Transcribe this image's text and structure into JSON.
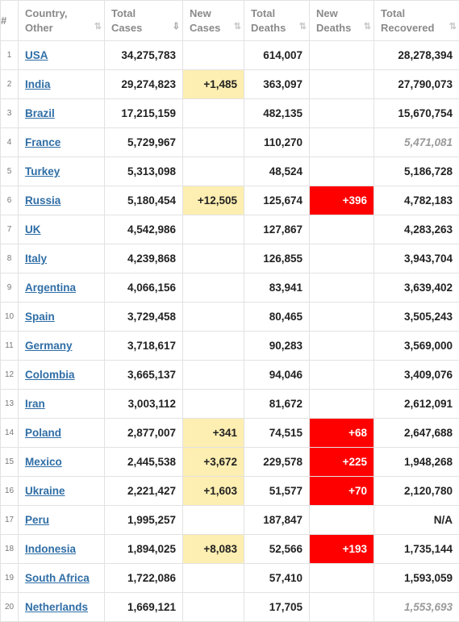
{
  "table": {
    "headers": [
      {
        "label": "#"
      },
      {
        "label": "Country, Other",
        "sort": "⇅"
      },
      {
        "label": "Total Cases",
        "sort": "⇩"
      },
      {
        "label": "New Cases",
        "sort": "⇅"
      },
      {
        "label": "Total Deaths",
        "sort": "⇅"
      },
      {
        "label": "New Deaths",
        "sort": "⇅"
      },
      {
        "label": "Total Recovered",
        "sort": "⇅"
      }
    ],
    "rows": [
      {
        "rank": "1",
        "country": "USA",
        "total_cases": "34,275,783",
        "new_cases": "",
        "total_deaths": "614,007",
        "new_deaths": "",
        "total_recovered": "28,278,394"
      },
      {
        "rank": "2",
        "country": "India",
        "total_cases": "29,274,823",
        "new_cases": "+1,485",
        "total_deaths": "363,097",
        "new_deaths": "",
        "total_recovered": "27,790,073"
      },
      {
        "rank": "3",
        "country": "Brazil",
        "total_cases": "17,215,159",
        "new_cases": "",
        "total_deaths": "482,135",
        "new_deaths": "",
        "total_recovered": "15,670,754"
      },
      {
        "rank": "4",
        "country": "France",
        "total_cases": "5,729,967",
        "new_cases": "",
        "total_deaths": "110,270",
        "new_deaths": "",
        "total_recovered": "5,471,081",
        "recovered_muted": true
      },
      {
        "rank": "5",
        "country": "Turkey",
        "total_cases": "5,313,098",
        "new_cases": "",
        "total_deaths": "48,524",
        "new_deaths": "",
        "total_recovered": "5,186,728"
      },
      {
        "rank": "6",
        "country": "Russia",
        "total_cases": "5,180,454",
        "new_cases": "+12,505",
        "total_deaths": "125,674",
        "new_deaths": "+396",
        "total_recovered": "4,782,183"
      },
      {
        "rank": "7",
        "country": "UK",
        "total_cases": "4,542,986",
        "new_cases": "",
        "total_deaths": "127,867",
        "new_deaths": "",
        "total_recovered": "4,283,263"
      },
      {
        "rank": "8",
        "country": "Italy",
        "total_cases": "4,239,868",
        "new_cases": "",
        "total_deaths": "126,855",
        "new_deaths": "",
        "total_recovered": "3,943,704"
      },
      {
        "rank": "9",
        "country": "Argentina",
        "total_cases": "4,066,156",
        "new_cases": "",
        "total_deaths": "83,941",
        "new_deaths": "",
        "total_recovered": "3,639,402"
      },
      {
        "rank": "10",
        "country": "Spain",
        "total_cases": "3,729,458",
        "new_cases": "",
        "total_deaths": "80,465",
        "new_deaths": "",
        "total_recovered": "3,505,243"
      },
      {
        "rank": "11",
        "country": "Germany",
        "total_cases": "3,718,617",
        "new_cases": "",
        "total_deaths": "90,283",
        "new_deaths": "",
        "total_recovered": "3,569,000"
      },
      {
        "rank": "12",
        "country": "Colombia",
        "total_cases": "3,665,137",
        "new_cases": "",
        "total_deaths": "94,046",
        "new_deaths": "",
        "total_recovered": "3,409,076"
      },
      {
        "rank": "13",
        "country": "Iran",
        "total_cases": "3,003,112",
        "new_cases": "",
        "total_deaths": "81,672",
        "new_deaths": "",
        "total_recovered": "2,612,091"
      },
      {
        "rank": "14",
        "country": "Poland",
        "total_cases": "2,877,007",
        "new_cases": "+341",
        "total_deaths": "74,515",
        "new_deaths": "+68",
        "total_recovered": "2,647,688"
      },
      {
        "rank": "15",
        "country": "Mexico",
        "total_cases": "2,445,538",
        "new_cases": "+3,672",
        "total_deaths": "229,578",
        "new_deaths": "+225",
        "total_recovered": "1,948,268"
      },
      {
        "rank": "16",
        "country": "Ukraine",
        "total_cases": "2,221,427",
        "new_cases": "+1,603",
        "total_deaths": "51,577",
        "new_deaths": "+70",
        "total_recovered": "2,120,780"
      },
      {
        "rank": "17",
        "country": "Peru",
        "total_cases": "1,995,257",
        "new_cases": "",
        "total_deaths": "187,847",
        "new_deaths": "",
        "total_recovered": "N/A"
      },
      {
        "rank": "18",
        "country": "Indonesia",
        "total_cases": "1,894,025",
        "new_cases": "+8,083",
        "total_deaths": "52,566",
        "new_deaths": "+193",
        "total_recovered": "1,735,144"
      },
      {
        "rank": "19",
        "country": "South Africa",
        "total_cases": "1,722,086",
        "new_cases": "",
        "total_deaths": "57,410",
        "new_deaths": "",
        "total_recovered": "1,593,059"
      },
      {
        "rank": "20",
        "country": "Netherlands",
        "total_cases": "1,669,121",
        "new_cases": "",
        "total_deaths": "17,705",
        "new_deaths": "",
        "total_recovered": "1,553,693",
        "recovered_muted": true
      }
    ]
  },
  "colors": {
    "link": "#2f6ea6",
    "new_cases_bg": "#fdeeb1",
    "new_deaths_bg": "#ff0000",
    "header_text": "#8a8a8a",
    "border": "#e2e2e2"
  }
}
